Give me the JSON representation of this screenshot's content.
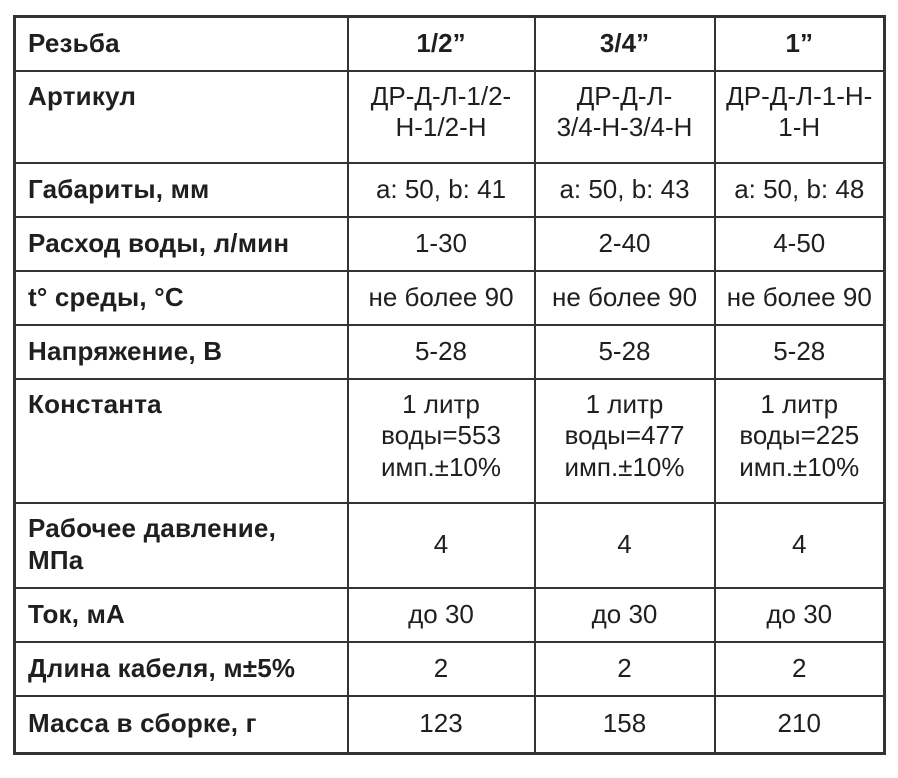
{
  "table": {
    "rows": [
      {
        "label": "Резьба",
        "values": [
          "1/2”",
          "3/4”",
          "1”"
        ]
      },
      {
        "label": "Артикул",
        "values": [
          "ДР-Д-Л-1/2-\nН-1/2-Н",
          "ДР-Д-Л-\n3/4-Н-3/4-Н",
          "ДР-Д-Л-1-Н-\n1-Н"
        ]
      },
      {
        "label": "Габариты, мм",
        "values": [
          "a: 50, b: 41",
          "a: 50, b: 43",
          "a: 50, b: 48"
        ]
      },
      {
        "label": "Расход воды, л/мин",
        "values": [
          "1-30",
          "2-40",
          "4-50"
        ]
      },
      {
        "label": "t° среды, °С",
        "values": [
          "не более 90",
          "не более 90",
          "не более 90"
        ]
      },
      {
        "label": "Напряжение, В",
        "values": [
          "5-28",
          "5-28",
          "5-28"
        ]
      },
      {
        "label": "Константа",
        "values": [
          "1 литр\nводы=553\nимп.±10%",
          "1 литр\nводы=477\nимп.±10%",
          "1 литр\nводы=225\nимп.±10%"
        ]
      },
      {
        "label": "Рабочее давление,\nМПа",
        "values": [
          "4",
          "4",
          "4"
        ]
      },
      {
        "label": "Ток, мА",
        "values": [
          "до 30",
          "до 30",
          "до 30"
        ]
      },
      {
        "label": "Длина кабеля, м±5%",
        "values": [
          "2",
          "2",
          "2"
        ]
      },
      {
        "label": "Масса в сборке, г",
        "values": [
          "123",
          "158",
          "210"
        ]
      }
    ],
    "colors": {
      "border": "#333333",
      "text": "#1f1f1f",
      "background": "#ffffff"
    }
  }
}
